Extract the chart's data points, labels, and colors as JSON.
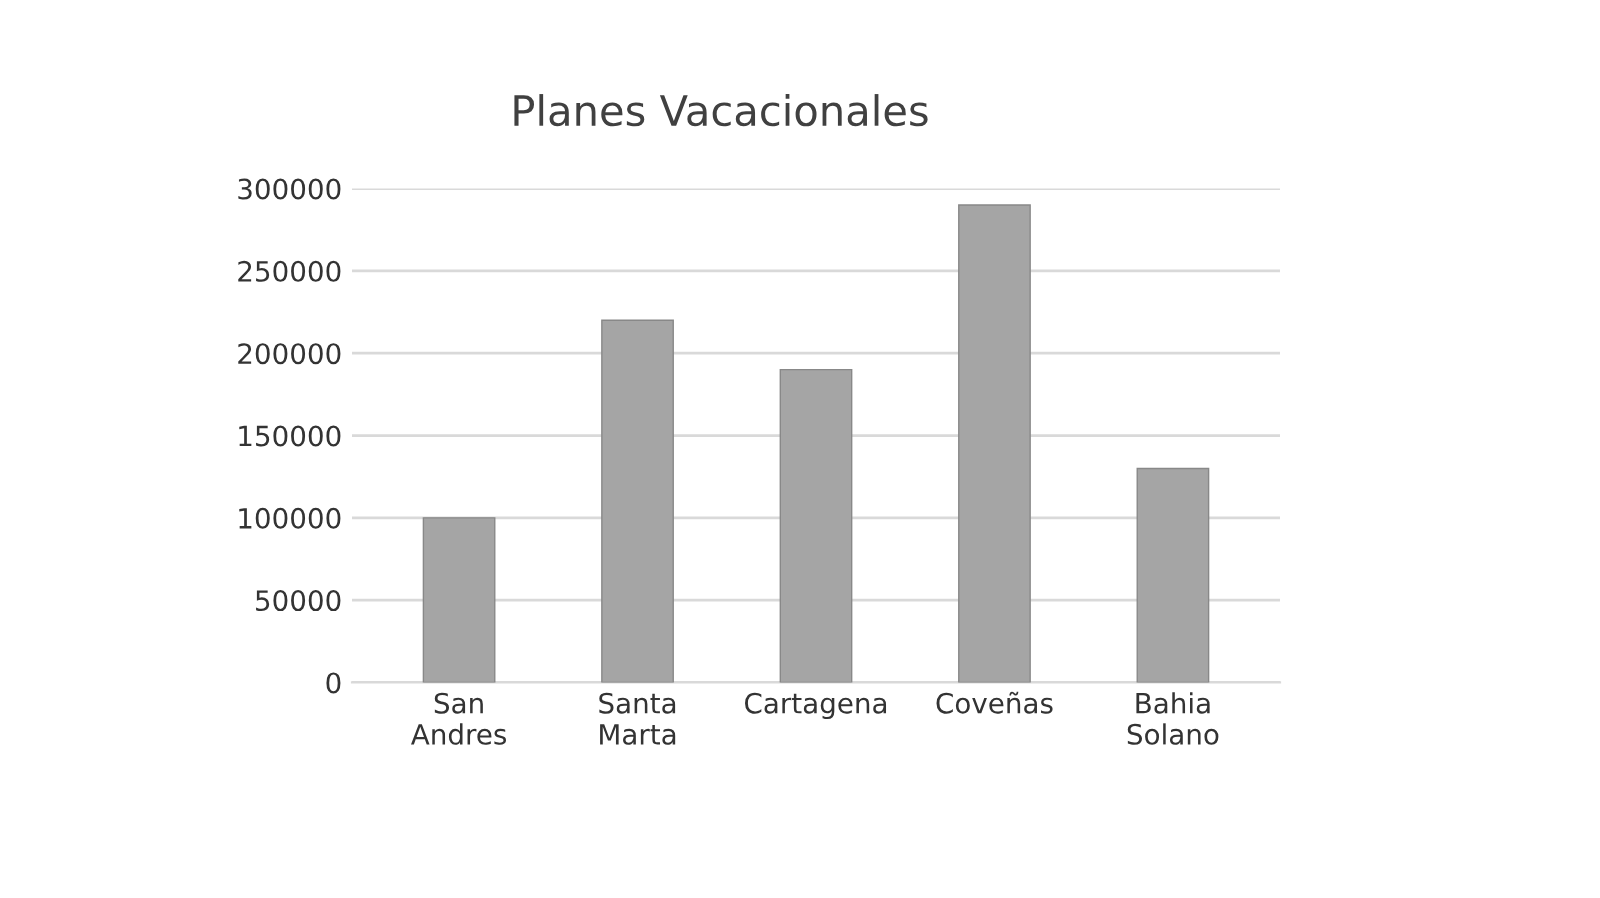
{
  "chart_data": {
    "type": "bar",
    "title": "Planes Vacacionales",
    "categories": [
      "San\nAndres",
      "Santa\nMarta",
      "Cartagena",
      "Coveñas",
      "Bahia\nSolano"
    ],
    "values": [
      100000,
      220000,
      190000,
      290000,
      130000
    ],
    "color": "#a5a5a5",
    "ylim": [
      0,
      300000
    ],
    "yticks": [
      0,
      50000,
      100000,
      150000,
      200000,
      250000,
      300000
    ],
    "grid": "y"
  }
}
